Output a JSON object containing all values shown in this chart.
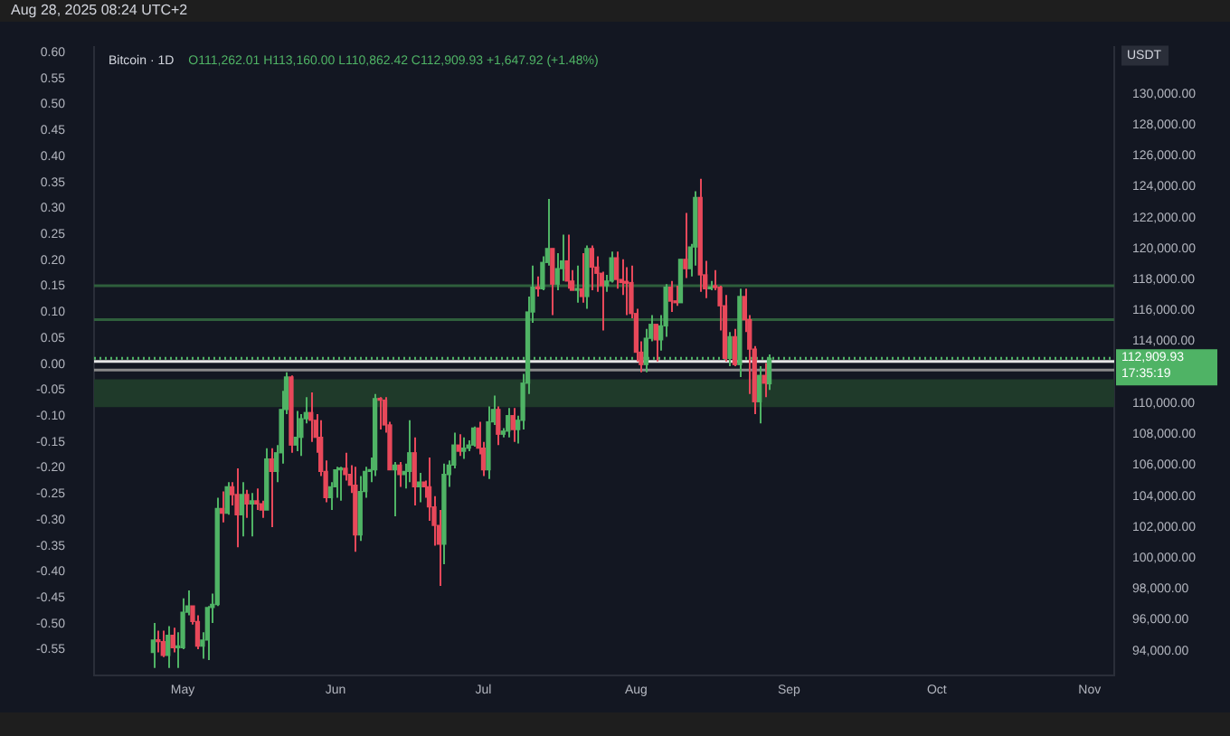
{
  "chart_data": {
    "type": "candlestick",
    "title": "Bitcoin · 1D",
    "subtitle": "O111,262.01 H113,160.00 L110,862.42 C112,909.93 +1,647.92 (+1.48%)",
    "ylabel": "USDT",
    "annotations": [
      "Aug 28, 2025 08:24 UTC+2"
    ],
    "colors": [
      "#4fb365",
      "#e8485a",
      "#e8485a",
      "#4fb365",
      "#e8485a",
      "#4fb365",
      "#4fb365",
      "#4fb365",
      "#e8485a",
      "#e8485a",
      "#4fb365",
      "#4fb365",
      "#4fb365",
      "#4fb365",
      "#e8485a",
      "#4fb365",
      "#e8485a",
      "#e8485a",
      "#4fb365",
      "#e8485a",
      "#4fb365",
      "#e8485a",
      "#e8485a",
      "#4fb365",
      "#e8485a",
      "#4fb365",
      "#4fb365",
      "#4fb365",
      "#e8485a",
      "#4fb365",
      "#4fb365",
      "#4fb365",
      "#e8485a",
      "#e8485a",
      "#e8485a",
      "#e8485a",
      "#4fb365",
      "#4fb365",
      "#4fb365",
      "#e8485a",
      "#e8485a",
      "#e8485a",
      "#4fb365",
      "#4fb365",
      "#4fb365",
      "#4fb365",
      "#e8485a",
      "#e8485a",
      "#e8485a",
      "#4fb365",
      "#e8485a",
      "#4fb365",
      "#4fb365",
      "#e8485a",
      "#4fb365",
      "#e8485a",
      "#e8485a",
      "#e8485a",
      "#e8485a",
      "#4fb365",
      "#4fb365",
      "#4fb365",
      "#e8485a",
      "#4fb365",
      "#4fb365",
      "#4fb365",
      "#e8485a",
      "#e8485a",
      "#4fb365",
      "#4fb365",
      "#e8485a",
      "#4fb365",
      "#4fb365",
      "#e8485a",
      "#4fb365",
      "#4fb365",
      "#4fb365",
      "#4fb365",
      "#e8485a",
      "#4fb365",
      "#4fb365",
      "#e8485a",
      "#4fb365",
      "#4fb365",
      "#e8485a",
      "#e8485a",
      "#4fb365",
      "#e8485a",
      "#4fb365",
      "#e8485a",
      "#e8485a",
      "#e8485a",
      "#4fb365",
      "#4fb365",
      "#e8485a",
      "#e8485a",
      "#e8485a",
      "#e8485a",
      "#e8485a",
      "#e8485a",
      "#4fb365",
      "#4fb365",
      "#e8485a",
      "#4fb365",
      "#4fb365",
      "#e8485a",
      "#e8485a",
      "#4fb365",
      "#e8485a",
      "#4fb365",
      "#4fb365",
      "#e8485a",
      "#e8485a",
      "#4fb365",
      "#e8485a",
      "#e8485a",
      "#e8485a",
      "#4fb365",
      "#e8485a",
      "#4fb365",
      "#e8485a",
      "#e8485a",
      "#e8485a",
      "#4fb365",
      "#e8485a",
      "#4fb365"
    ],
    "grid": false,
    "legend": false,
    "x": [
      "2025-04-25",
      "2025-04-26",
      "2025-04-27",
      "2025-04-28",
      "2025-04-29",
      "2025-04-30",
      "2025-05-01",
      "2025-05-02",
      "2025-05-03",
      "2025-05-04",
      "2025-05-05",
      "2025-05-06",
      "2025-05-07",
      "2025-05-08",
      "2025-05-09",
      "2025-05-10",
      "2025-05-11",
      "2025-05-12",
      "2025-05-13",
      "2025-05-14",
      "2025-05-15",
      "2025-05-16",
      "2025-05-17",
      "2025-05-18",
      "2025-05-19",
      "2025-05-20",
      "2025-05-21",
      "2025-05-22",
      "2025-05-23",
      "2025-05-24",
      "2025-05-25",
      "2025-05-26",
      "2025-05-27",
      "2025-05-28",
      "2025-05-29",
      "2025-05-30",
      "2025-05-31",
      "2025-06-01",
      "2025-06-02",
      "2025-06-03",
      "2025-06-04",
      "2025-06-05",
      "2025-06-06",
      "2025-06-07",
      "2025-06-08",
      "2025-06-09",
      "2025-06-10",
      "2025-06-11",
      "2025-06-12",
      "2025-06-13",
      "2025-06-14",
      "2025-06-15",
      "2025-06-16",
      "2025-06-17",
      "2025-06-18",
      "2025-06-19",
      "2025-06-20",
      "2025-06-21",
      "2025-06-22",
      "2025-06-23",
      "2025-06-24",
      "2025-06-25",
      "2025-06-26",
      "2025-06-27",
      "2025-06-28",
      "2025-06-29",
      "2025-06-30",
      "2025-07-01",
      "2025-07-02",
      "2025-07-03",
      "2025-07-04",
      "2025-07-05",
      "2025-07-06",
      "2025-07-07",
      "2025-07-08",
      "2025-07-09",
      "2025-07-10",
      "2025-07-11",
      "2025-07-12",
      "2025-07-13",
      "2025-07-14",
      "2025-07-15",
      "2025-07-16",
      "2025-07-17",
      "2025-07-18",
      "2025-07-19",
      "2025-07-20",
      "2025-07-21",
      "2025-07-22",
      "2025-07-23",
      "2025-07-24",
      "2025-07-25",
      "2025-07-26",
      "2025-07-27",
      "2025-07-28",
      "2025-07-29",
      "2025-07-30",
      "2025-07-31",
      "2025-08-01",
      "2025-08-02",
      "2025-08-03",
      "2025-08-04",
      "2025-08-05",
      "2025-08-06",
      "2025-08-07",
      "2025-08-08",
      "2025-08-09",
      "2025-08-10",
      "2025-08-11",
      "2025-08-12",
      "2025-08-13",
      "2025-08-14",
      "2025-08-15",
      "2025-08-16",
      "2025-08-17",
      "2025-08-18",
      "2025-08-19",
      "2025-08-20",
      "2025-08-21",
      "2025-08-22",
      "2025-08-23",
      "2025-08-24",
      "2025-08-25",
      "2025-08-26",
      "2025-08-27",
      "2025-08-28"
    ],
    "ohlc": [
      [
        93900,
        95800,
        92900,
        94700
      ],
      [
        94700,
        95300,
        93900,
        94600
      ],
      [
        94600,
        95300,
        93600,
        93700
      ],
      [
        93700,
        95600,
        92900,
        95000
      ],
      [
        95000,
        95500,
        93900,
        94200
      ],
      [
        94200,
        95200,
        92900,
        94300
      ],
      [
        94200,
        97400,
        94100,
        96500
      ],
      [
        96500,
        97900,
        96300,
        96900
      ],
      [
        96900,
        96900,
        95700,
        95900
      ],
      [
        95900,
        96300,
        94100,
        94300
      ],
      [
        94300,
        95200,
        93500,
        94700
      ],
      [
        94700,
        96900,
        93400,
        96800
      ],
      [
        96800,
        97700,
        95800,
        97000
      ],
      [
        97000,
        103900,
        96900,
        103200
      ],
      [
        103200,
        104300,
        102300,
        102900
      ],
      [
        102900,
        104900,
        102800,
        104600
      ],
      [
        104600,
        104900,
        103400,
        104100
      ],
      [
        104100,
        105800,
        100700,
        102800
      ],
      [
        102800,
        104900,
        101400,
        104100
      ],
      [
        104100,
        104400,
        102600,
        103500
      ],
      [
        103500,
        104200,
        101400,
        103700
      ],
      [
        103700,
        104500,
        103100,
        103500
      ],
      [
        103500,
        103700,
        102600,
        103100
      ],
      [
        103100,
        107100,
        103100,
        106400
      ],
      [
        106400,
        107100,
        102000,
        105600
      ],
      [
        105600,
        107300,
        104900,
        106800
      ],
      [
        106800,
        110800,
        106100,
        109600
      ],
      [
        109600,
        112000,
        109300,
        111700
      ],
      [
        111700,
        111800,
        106800,
        107300
      ],
      [
        107300,
        109500,
        106900,
        107800
      ],
      [
        107800,
        109300,
        106600,
        109000
      ],
      [
        109000,
        110400,
        108700,
        109400
      ],
      [
        109400,
        110700,
        107500,
        108900
      ],
      [
        108900,
        109300,
        106800,
        107800
      ],
      [
        107800,
        108900,
        105300,
        105600
      ],
      [
        105600,
        106300,
        103600,
        103900
      ],
      [
        103900,
        104900,
        103100,
        104600
      ],
      [
        104600,
        105900,
        103900,
        105700
      ],
      [
        105700,
        105900,
        103700,
        105800
      ],
      [
        105800,
        106800,
        105000,
        105400
      ],
      [
        105400,
        106000,
        104200,
        104700
      ],
      [
        104700,
        105900,
        100400,
        101500
      ],
      [
        101500,
        105300,
        101100,
        104300
      ],
      [
        104300,
        105900,
        103900,
        105600
      ],
      [
        105600,
        106500,
        104900,
        105700
      ],
      [
        105700,
        110600,
        105300,
        110300
      ],
      [
        110300,
        110400,
        108300,
        110200
      ],
      [
        110200,
        110400,
        108100,
        108600
      ],
      [
        108600,
        108800,
        105700,
        105700
      ],
      [
        105700,
        106200,
        102700,
        106000
      ],
      [
        106000,
        106200,
        104600,
        105400
      ],
      [
        105400,
        106100,
        104500,
        105600
      ],
      [
        105600,
        108900,
        104900,
        106800
      ],
      [
        106800,
        107800,
        103400,
        104600
      ],
      [
        104600,
        105500,
        103600,
        104900
      ],
      [
        104900,
        105000,
        103900,
        104600
      ],
      [
        104600,
        106500,
        102400,
        103300
      ],
      [
        103300,
        104000,
        100800,
        102100
      ],
      [
        102100,
        103100,
        98200,
        100900
      ],
      [
        100900,
        106100,
        99600,
        105400
      ],
      [
        105400,
        106300,
        104600,
        106000
      ],
      [
        106000,
        108100,
        105800,
        107300
      ],
      [
        107300,
        108000,
        106600,
        106900
      ],
      [
        106900,
        107800,
        106400,
        107100
      ],
      [
        107100,
        107600,
        106900,
        107300
      ],
      [
        107300,
        108500,
        107200,
        108400
      ],
      [
        108400,
        108800,
        106700,
        107100
      ],
      [
        107100,
        107500,
        105300,
        105700
      ],
      [
        105700,
        109800,
        105100,
        108800
      ],
      [
        108800,
        110500,
        108600,
        109600
      ],
      [
        109600,
        109800,
        107300,
        108000
      ],
      [
        108000,
        108400,
        107800,
        108200
      ],
      [
        108200,
        109700,
        107800,
        109200
      ],
      [
        109200,
        109700,
        107500,
        108300
      ],
      [
        108300,
        109200,
        107400,
        108900
      ],
      [
        108900,
        111900,
        108300,
        111300
      ],
      [
        111300,
        116900,
        110600,
        115900
      ],
      [
        115900,
        118900,
        115200,
        117500
      ],
      [
        117500,
        118200,
        116900,
        117400
      ],
      [
        117400,
        119500,
        117300,
        119100
      ],
      [
        119100,
        123200,
        118900,
        120000
      ],
      [
        120000,
        120000,
        115700,
        117700
      ],
      [
        117700,
        119700,
        117300,
        118700
      ],
      [
        118700,
        120900,
        117900,
        119200
      ],
      [
        119200,
        120900,
        117400,
        117900
      ],
      [
        117900,
        118600,
        117300,
        117300
      ],
      [
        117300,
        118900,
        116500,
        117400
      ],
      [
        117400,
        119700,
        116500,
        116900
      ],
      [
        116900,
        120200,
        116100,
        120000
      ],
      [
        120000,
        120200,
        117300,
        118800
      ],
      [
        118800,
        119500,
        117200,
        118400
      ],
      [
        118400,
        118500,
        114700,
        117600
      ],
      [
        117600,
        118300,
        117200,
        117900
      ],
      [
        117900,
        119800,
        117800,
        119400
      ],
      [
        119400,
        119800,
        117400,
        118000
      ],
      [
        118000,
        119300,
        117000,
        117800
      ],
      [
        117800,
        118800,
        115700,
        117760
      ],
      [
        117800,
        118900,
        115500,
        115800
      ],
      [
        115800,
        116100,
        112700,
        113300
      ],
      [
        113300,
        114000,
        112000,
        112500
      ],
      [
        112500,
        114800,
        112000,
        114200
      ],
      [
        114200,
        115700,
        114000,
        115100
      ],
      [
        115100,
        115100,
        112700,
        114100
      ],
      [
        114100,
        115700,
        113400,
        115000
      ],
      [
        115000,
        117700,
        114300,
        117500
      ],
      [
        117500,
        117900,
        115900,
        116600
      ],
      [
        116600,
        117600,
        116300,
        116500
      ],
      [
        116500,
        119300,
        116500,
        119300
      ],
      [
        119300,
        122300,
        118100,
        118700
      ],
      [
        118700,
        120300,
        118200,
        120100
      ],
      [
        120100,
        123700,
        118900,
        123300
      ],
      [
        123300,
        124500,
        117200,
        118300
      ],
      [
        118300,
        119200,
        116800,
        117400
      ],
      [
        117400,
        117900,
        117300,
        117500
      ],
      [
        117500,
        118600,
        117300,
        117480
      ],
      [
        117500,
        117600,
        114700,
        116300
      ],
      [
        116300,
        117000,
        112700,
        112900
      ],
      [
        112900,
        114600,
        112400,
        114300
      ],
      [
        114300,
        114800,
        112400,
        112500
      ],
      [
        112500,
        117400,
        111700,
        116900
      ],
      [
        116900,
        117400,
        114600,
        115400
      ],
      [
        115400,
        115700,
        110600,
        113500
      ],
      [
        113500,
        113700,
        109300,
        110100
      ],
      [
        110100,
        112400,
        108700,
        111800
      ],
      [
        111800,
        112600,
        110400,
        111300
      ],
      [
        111262.01,
        113160,
        110862.42,
        112909.93
      ]
    ],
    "xlim": [
      "2025-04-13",
      "2025-11-06"
    ],
    "xticks": [
      {
        "value": "2025-05-01",
        "label": "May"
      },
      {
        "value": "2025-06-01",
        "label": "Jun"
      },
      {
        "value": "2025-07-01",
        "label": "Jul"
      },
      {
        "value": "2025-08-01",
        "label": "Aug"
      },
      {
        "value": "2025-09-01",
        "label": "Sep"
      },
      {
        "value": "2025-10-01",
        "label": "Oct"
      },
      {
        "value": "2025-11-01",
        "label": "Nov"
      }
    ],
    "ylim": [
      92400,
      133000
    ],
    "yticks": [
      {
        "value": 94000,
        "label": "94,000.00"
      },
      {
        "value": 96000,
        "label": "96,000.00"
      },
      {
        "value": 98000,
        "label": "98,000.00"
      },
      {
        "value": 100000,
        "label": "100,000.00"
      },
      {
        "value": 102000,
        "label": "102,000.00"
      },
      {
        "value": 104000,
        "label": "104,000.00"
      },
      {
        "value": 106000,
        "label": "106,000.00"
      },
      {
        "value": 108000,
        "label": "108,000.00"
      },
      {
        "value": 110000,
        "label": "110,000.00"
      },
      {
        "value": 114000,
        "label": "114,000.00"
      },
      {
        "value": 116000,
        "label": "116,000.00"
      },
      {
        "value": 118000,
        "label": "118,000.00"
      },
      {
        "value": 120000,
        "label": "120,000.00"
      },
      {
        "value": 122000,
        "label": "122,000.00"
      },
      {
        "value": 124000,
        "label": "124,000.00"
      },
      {
        "value": 126000,
        "label": "126,000.00"
      },
      {
        "value": 128000,
        "label": "128,000.00"
      },
      {
        "value": 130000,
        "label": "130,000.00"
      }
    ],
    "y2lim": [
      -0.6,
      0.61
    ],
    "y2ticks": [
      {
        "value": -0.55,
        "label": "-0.55"
      },
      {
        "value": -0.5,
        "label": "-0.50"
      },
      {
        "value": -0.45,
        "label": "-0.45"
      },
      {
        "value": -0.4,
        "label": "-0.40"
      },
      {
        "value": -0.35,
        "label": "-0.35"
      },
      {
        "value": -0.3,
        "label": "-0.30"
      },
      {
        "value": -0.25,
        "label": "-0.25"
      },
      {
        "value": -0.2,
        "label": "-0.20"
      },
      {
        "value": -0.15,
        "label": "-0.15"
      },
      {
        "value": -0.1,
        "label": "-0.10"
      },
      {
        "value": -0.05,
        "label": "-0.05"
      },
      {
        "value": 0,
        "label": "0.00"
      },
      {
        "value": 0.05,
        "label": "0.05"
      },
      {
        "value": 0.1,
        "label": "0.10"
      },
      {
        "value": 0.15,
        "label": "0.15"
      },
      {
        "value": 0.2,
        "label": "0.20"
      },
      {
        "value": 0.25,
        "label": "0.25"
      },
      {
        "value": 0.3,
        "label": "0.30"
      },
      {
        "value": 0.35,
        "label": "0.35"
      },
      {
        "value": 0.4,
        "label": "0.40"
      },
      {
        "value": 0.45,
        "label": "0.45"
      },
      {
        "value": 0.5,
        "label": "0.50"
      },
      {
        "value": 0.55,
        "label": "0.55"
      },
      {
        "value": 0.6,
        "label": "0.60"
      }
    ],
    "bands": [
      {
        "axis": "y",
        "from": 109750,
        "to": 111550,
        "color": "#1f3a2a"
      }
    ],
    "ref_lines": [
      {
        "axis": "y",
        "value": 117600,
        "color": "#2f5f3c"
      },
      {
        "axis": "y",
        "value": 115400,
        "color": "#2f5f3c"
      },
      {
        "axis": "y",
        "value": 112700,
        "color": "#e6e6e6"
      },
      {
        "axis": "y",
        "value": 112150,
        "color": "#8a8a8a"
      },
      {
        "axis": "y",
        "value": 112909.93,
        "label": "112,909.93\n17:35:19",
        "color": "#4fb365",
        "line_style": "dotted"
      }
    ]
  }
}
